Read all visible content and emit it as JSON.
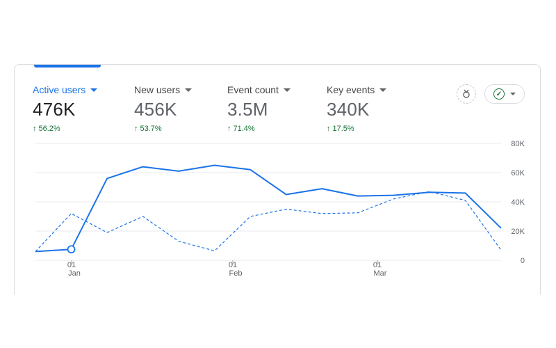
{
  "metrics": [
    {
      "label": "Active users",
      "value": "476K",
      "change": "56.2%",
      "active": true
    },
    {
      "label": "New users",
      "value": "456K",
      "change": "53.7%"
    },
    {
      "label": "Event count",
      "value": "3.5M",
      "change": "71.4%"
    },
    {
      "label": "Key events",
      "value": "340K",
      "change": "17.5%"
    }
  ],
  "icons": {
    "change_arrow": "arrow-up-icon",
    "insights": "insights-icon",
    "status": "check-circle-icon",
    "status_dropdown": "chevron-down-icon"
  },
  "colors": {
    "accent": "#1a73e8",
    "positive": "#137333"
  },
  "chart_data": {
    "type": "line",
    "y_ticks": [
      "80K",
      "60K",
      "40K",
      "20K",
      "0"
    ],
    "ylim": [
      0,
      80000
    ],
    "x_ticks": [
      {
        "day": "01",
        "month": "Jan"
      },
      {
        "day": "01",
        "month": "Feb"
      },
      {
        "day": "01",
        "month": "Mar"
      }
    ],
    "series": [
      {
        "style": "solid",
        "values": [
          6000,
          7500,
          56000,
          64000,
          61000,
          65000,
          62000,
          45000,
          49000,
          44000,
          44500,
          46500,
          46000,
          22000
        ]
      },
      {
        "style": "dashed",
        "values": [
          6000,
          32000,
          19000,
          30000,
          13000,
          6500,
          30000,
          35000,
          32000,
          32500,
          42000,
          47000,
          41000,
          7000
        ]
      }
    ],
    "marker": {
      "series": 0,
      "index": 1
    },
    "grid": true
  }
}
